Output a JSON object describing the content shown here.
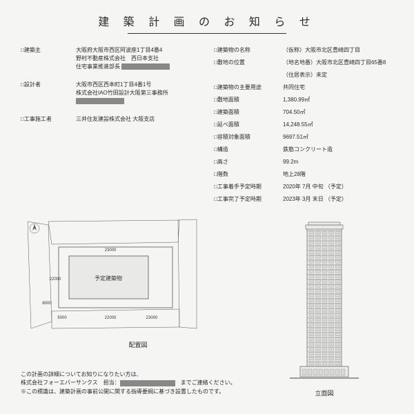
{
  "title": "建 築 計 画 の お 知 ら せ",
  "left": [
    {
      "label": "□建築主",
      "lines": [
        "大阪府大阪市西区阿波座1丁目4番4",
        "野村不動産株式会社　西日本支社",
        "住宅事業推進部長 [redact:70]"
      ]
    },
    {
      "label": "□設計者",
      "lines": [
        "大阪市西区西本町1丁目4番1号",
        "株式会社IAO竹田設計大阪第三事務所",
        "[redact:70]"
      ]
    },
    {
      "label": "□工事施工者",
      "lines": [
        "三井住友建設株式会社 大阪支店"
      ]
    }
  ],
  "right": [
    {
      "label": "□建築物の名称",
      "value": "（仮称）大阪市北区豊崎四丁目"
    },
    {
      "label": "□敷地の位置",
      "value": "（地名地番）大阪市北区豊崎四丁目65番8"
    },
    {
      "label": "",
      "value": "（住居表示）未定"
    },
    {
      "label": "□建築物の主要用途",
      "value": "共同住宅"
    },
    {
      "label": "□敷地面積",
      "value": "1,380.99㎡"
    },
    {
      "label": "□建築面積",
      "value": "704.50㎡"
    },
    {
      "label": "□延べ面積",
      "value": "14,248.55㎡"
    },
    {
      "label": "□容積対象面積",
      "value": "9697.51㎡"
    },
    {
      "label": "□構造",
      "value": "鉄筋コンクリート造"
    },
    {
      "label": "□高さ",
      "value": "99.2m"
    },
    {
      "label": "□階数",
      "value": "地上28階"
    },
    {
      "label": "□工事着手予定時期",
      "value": "2020年 7月 中旬 （予定）"
    },
    {
      "label": "□工事完了予定時期",
      "value": "2023年 3月 末日 （予定）"
    }
  ],
  "plan": {
    "caption": "配置図",
    "building_label": "予定建築物",
    "dims": [
      "23000",
      "22000",
      "8000",
      "5000",
      "22000",
      "23000"
    ],
    "colors": {
      "line": "#555",
      "fill": "#e9e9e7",
      "bg": "#f5f5f4"
    }
  },
  "elevation": {
    "caption": "立面図",
    "floors": 28,
    "colors": {
      "line": "#444",
      "fill": "#eaeae8"
    }
  },
  "footer": {
    "line1": "この計画の詳細についてお知りになりたい方は、",
    "line2_a": "株式会社フォーエバーサンクス　担当：",
    "line2_b": "　までご連絡ください。",
    "line3": "※この標識は、建築計画の事前公開に関する指導要綱に基づき設置したものです。"
  }
}
